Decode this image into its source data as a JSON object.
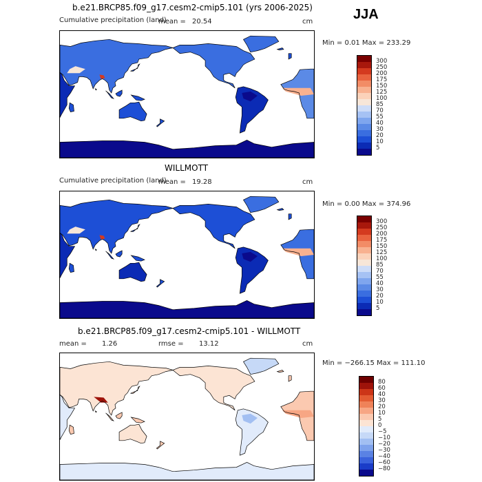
{
  "season": "JJA",
  "panels": [
    {
      "title": "b.e21.BRCP85.f09_g17.cesm2-cmip5.101 (yrs 2006-2025)",
      "left_label": "Cumulative precipitation (land)",
      "center_label": "mean =",
      "center_value": "20.54",
      "unit": "cm",
      "stats": "Min =    0.01 Max = 233.29",
      "colorbar_ticks": [
        "300",
        "250",
        "200",
        "175",
        "150",
        "125",
        "100",
        "85",
        "70",
        "55",
        "40",
        "30",
        "20",
        "10",
        "5"
      ]
    },
    {
      "title": "WILLMOTT",
      "left_label": "Cumulative precipitation (land)",
      "center_label": "mean =",
      "center_value": "19.28",
      "unit": "cm",
      "stats": "Min =    0.00 Max = 374.96",
      "colorbar_ticks": [
        "300",
        "250",
        "200",
        "175",
        "150",
        "125",
        "100",
        "85",
        "70",
        "55",
        "40",
        "30",
        "20",
        "10",
        "5"
      ]
    },
    {
      "title": "b.e21.BRCP85.f09_g17.cesm2-cmip5.101 - WILLMOTT",
      "left_label": "mean =",
      "left_value": "1.26",
      "center_label": "rmse =",
      "center_value": "13.12",
      "unit": "cm",
      "stats": "Min = −266.15 Max = 111.10",
      "colorbar_ticks": [
        "80",
        "60",
        "40",
        "30",
        "20",
        "10",
        "5",
        "0",
        "−5",
        "−10",
        "−20",
        "−30",
        "−40",
        "−60",
        "−80"
      ]
    }
  ],
  "colors": {
    "precip_scale": [
      "#0a0a8c",
      "#0b2bb5",
      "#1d4fd6",
      "#3a6ee0",
      "#5b8ae6",
      "#7fa6ee",
      "#a6c2f4",
      "#cddcf8",
      "#f7e6d8",
      "#fbd2ba",
      "#f8b190",
      "#f28c66",
      "#e9633f",
      "#d43a1f",
      "#a8180c",
      "#7a0000"
    ],
    "diff_scale": [
      "#0a0a8c",
      "#1a3cc8",
      "#3a62dc",
      "#5a82e4",
      "#7ea2ec",
      "#a2bff2",
      "#c6d9f7",
      "#e1ebfb",
      "#fce4d4",
      "#fbc9b0",
      "#f7a684",
      "#ef8259",
      "#e35c33",
      "#cc3518",
      "#9e130a",
      "#6e0000"
    ],
    "ocean": "#ffffff",
    "coast": "#000000"
  }
}
